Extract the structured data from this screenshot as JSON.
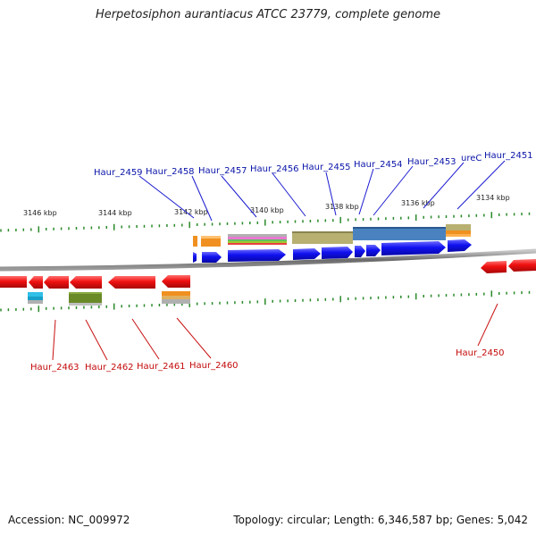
{
  "title": "Herpetosiphon aurantiacus ATCC 23779, complete genome",
  "footer": {
    "accession": "Accession: NC_009972",
    "summary": "Topology: circular; Length: 6,346,587 bp; Genes: 5,042"
  },
  "kbp_labels": [
    "3146 kbp",
    "3144 kbp",
    "3142 kbp",
    "3140 kbp",
    "3138 kbp",
    "3136 kbp",
    "3134 kbp"
  ],
  "top_genes": [
    "Haur_2459",
    "Haur_2458",
    "Haur_2457",
    "Haur_2456",
    "Haur_2455",
    "Haur_2454",
    "Haur_2453",
    "ureC",
    "Haur_2451"
  ],
  "bottom_genes": [
    "Haur_2463",
    "Haur_2462",
    "Haur_2461",
    "Haur_2460",
    "Haur_2450"
  ],
  "colors": {
    "forward": "#1010e8",
    "reverse": "#e81010",
    "top_label": "#0a14a8",
    "bottom_label": "#c40a0a",
    "tick": "#2a8a2a",
    "backbone": "#7a7a7a"
  }
}
